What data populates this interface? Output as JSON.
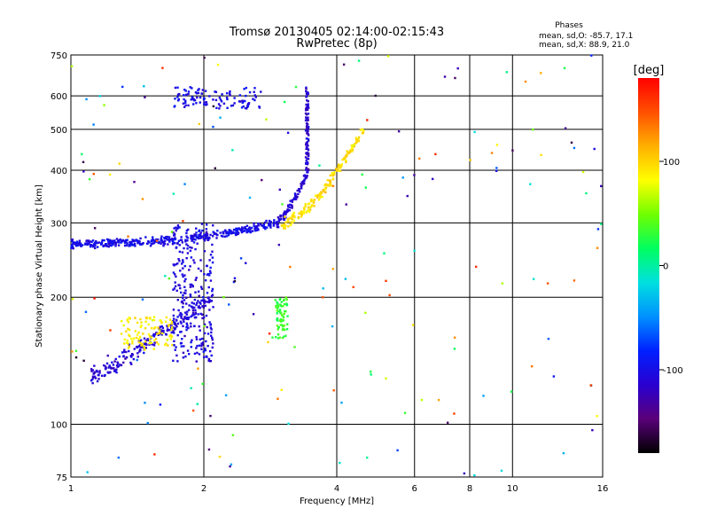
{
  "chart_data": {
    "type": "scatter",
    "title": "Tromsø 20130405 02:14:00-02:15:43",
    "subtitle": "RwPretec (8p)",
    "xlabel": "Frequency [MHz]",
    "ylabel": "Stationary phase Virtual Height [km]",
    "x_scale": "log",
    "y_scale": "log",
    "xlim": [
      1,
      16
    ],
    "ylim": [
      75,
      750
    ],
    "x_ticks": [
      1,
      2,
      4,
      6,
      8,
      10,
      16
    ],
    "y_ticks": [
      75,
      100,
      200,
      300,
      400,
      500,
      600,
      750
    ],
    "grid": true,
    "stats": {
      "heading": "Phases",
      "o_line": "mean, sd,O: -85.7, 17.1",
      "x_line": "mean, sd,X:  88.9, 21.0"
    },
    "colorbar": {
      "label": "[deg]",
      "range": [
        -180,
        180
      ],
      "ticks": [
        100,
        0,
        -100
      ],
      "colors": [
        "#000000",
        "#5a007a",
        "#2a00d0",
        "#0020ff",
        "#0090ff",
        "#00e0e0",
        "#00ff60",
        "#70ff00",
        "#ffff00",
        "#ffb000",
        "#ff5000",
        "#ff0000"
      ]
    },
    "series": [
      {
        "trace": "F-layer trace",
        "x_range": [
          1.0,
          2.9
        ],
        "y_range": [
          268,
          300
        ],
        "phase_deg": -100
      },
      {
        "trace": "upper F trace",
        "x_range": [
          2.9,
          3.45
        ],
        "y_range": [
          300,
          400
        ],
        "phase_deg": -110
      },
      {
        "trace": "cusp vertical",
        "x_range": [
          3.4,
          3.45
        ],
        "y_range": [
          400,
          630
        ],
        "phase_deg": -115
      },
      {
        "trace": "X-mode trace",
        "x_range": [
          3.0,
          4.6
        ],
        "y_range": [
          300,
          500
        ],
        "phase_deg": 95
      },
      {
        "trace": "lower trace",
        "x_range": [
          1.1,
          2.1
        ],
        "y_range": [
          130,
          200
        ],
        "phase_deg": -110
      },
      {
        "trace": "lower X trace",
        "x_range": [
          1.3,
          1.7
        ],
        "y_range": [
          150,
          180
        ],
        "phase_deg": 90
      },
      {
        "trace": "vertical column",
        "x_range": [
          1.7,
          2.1
        ],
        "y_range": [
          140,
          300
        ],
        "phase_deg": -105
      },
      {
        "trace": "top band",
        "x_range": [
          1.7,
          2.7
        ],
        "y_range": [
          560,
          630
        ],
        "phase_deg": -100
      },
      {
        "trace": "green blob",
        "x_range": [
          2.9,
          3.1
        ],
        "y_range": [
          160,
          200
        ],
        "phase_deg": 30
      },
      {
        "trace": "scattered noise",
        "x_range": [
          1.0,
          16.0
        ],
        "y_range": [
          75,
          750
        ],
        "phase_deg": 0
      }
    ]
  }
}
